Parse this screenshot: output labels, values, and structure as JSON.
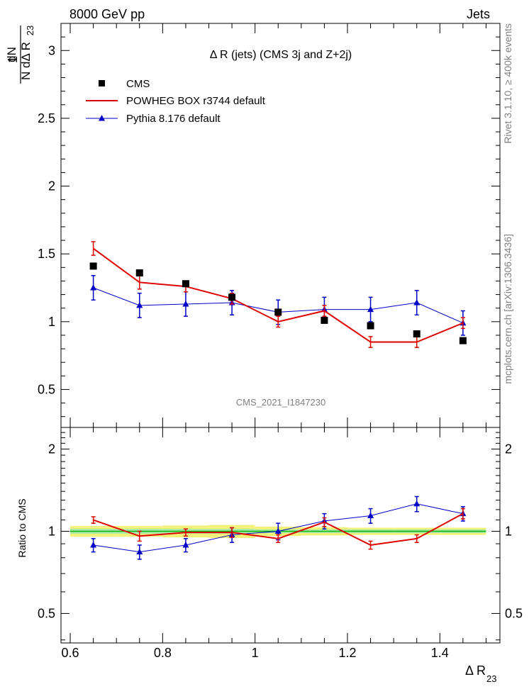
{
  "header": {
    "left": "8000 GeV pp",
    "right": "Jets"
  },
  "side_labels": {
    "rivet": "Rivet 3.1.10, ≥ 400k events",
    "mcplots": "mcplots.cern.ch [arXiv:1306.3436]"
  },
  "main_plot": {
    "title": "Δ R (jets) (CMS 3j and Z+2j)",
    "watermark": "CMS_2021_I1847230",
    "ylabel": {
      "top": "1",
      "num": "dN",
      "den": "N dΔ R",
      "sub": "23"
    },
    "ytick_labels": [
      "0.5",
      "1",
      "1.5",
      "2",
      "2.5",
      "3"
    ]
  },
  "ratio_plot": {
    "ylabel": "Ratio to CMS",
    "ytick_labels": [
      "0.5",
      "1",
      "2"
    ]
  },
  "xaxis": {
    "label": "Δ R",
    "sub": "23",
    "tick_labels": [
      "0.6",
      "0.8",
      "1",
      "1.2",
      "1.4"
    ]
  },
  "legend": [
    {
      "label": "CMS",
      "color": "#000000",
      "marker": "square"
    },
    {
      "label": "POWHEG BOX r3744 default",
      "color": "#e00000",
      "marker": "line"
    },
    {
      "label": "Pythia 8.176 default",
      "color": "#0000c8",
      "marker": "triangle"
    }
  ],
  "chart_data": [
    {
      "type": "line",
      "panel": "main",
      "title": "Δ R (jets) (CMS 3j and Z+2j)",
      "xlabel": "Δ R23",
      "ylabel": "1/N dN/dΔR23",
      "xlim": [
        0.58,
        1.53
      ],
      "ylim": [
        0.22,
        3.2
      ],
      "x": [
        0.65,
        0.75,
        0.85,
        0.95,
        1.05,
        1.15,
        1.25,
        1.35,
        1.45
      ],
      "series": [
        {
          "name": "CMS",
          "color": "#000000",
          "style": "markers",
          "values": [
            1.41,
            1.36,
            1.28,
            1.18,
            1.07,
            1.01,
            0.97,
            0.91,
            0.86
          ],
          "errors": [
            0.0,
            0.0,
            0.0,
            0.0,
            0.0,
            0.0,
            0.0,
            0.0,
            0.0
          ]
        },
        {
          "name": "POWHEG BOX r3744 default",
          "color": "#e00000",
          "style": "line",
          "values": [
            1.54,
            1.29,
            1.26,
            1.17,
            1.0,
            1.08,
            0.85,
            0.85,
            0.99
          ],
          "errors": [
            0.05,
            0.05,
            0.04,
            0.04,
            0.04,
            0.04,
            0.04,
            0.04,
            0.04
          ]
        },
        {
          "name": "Pythia 8.176 default",
          "color": "#0000c8",
          "style": "line-triangle",
          "values": [
            1.25,
            1.12,
            1.13,
            1.14,
            1.07,
            1.09,
            1.09,
            1.14,
            0.99
          ],
          "errors": [
            0.09,
            0.09,
            0.09,
            0.09,
            0.09,
            0.09,
            0.09,
            0.09,
            0.09
          ]
        }
      ]
    },
    {
      "type": "line",
      "panel": "ratio",
      "xlabel": "Δ R23",
      "ylabel": "Ratio to CMS",
      "xlim": [
        0.58,
        1.53
      ],
      "ylim": [
        0.39,
        2.4
      ],
      "yscale": "log",
      "x": [
        0.65,
        0.75,
        0.85,
        0.95,
        1.05,
        1.15,
        1.25,
        1.35,
        1.45
      ],
      "uncertainty_band": {
        "inner": [
          0.02,
          0.02,
          0.02,
          0.02,
          0.015,
          0.015,
          0.015,
          0.015,
          0.015
        ],
        "outer": [
          0.045,
          0.045,
          0.05,
          0.055,
          0.04,
          0.035,
          0.03,
          0.03,
          0.03
        ]
      },
      "series": [
        {
          "name": "POWHEG BOX r3744 default",
          "color": "#e00000",
          "values": [
            1.1,
            0.96,
            0.99,
            0.99,
            0.94,
            1.08,
            0.89,
            0.94,
            1.16
          ],
          "errors": [
            0.03,
            0.04,
            0.03,
            0.04,
            0.03,
            0.04,
            0.03,
            0.03,
            0.05
          ]
        },
        {
          "name": "Pythia 8.176 default",
          "color": "#0000c8",
          "values": [
            0.89,
            0.84,
            0.89,
            0.97,
            1.0,
            1.09,
            1.14,
            1.26,
            1.16
          ],
          "errors": [
            0.05,
            0.05,
            0.05,
            0.06,
            0.07,
            0.07,
            0.07,
            0.08,
            0.07
          ]
        }
      ]
    }
  ]
}
